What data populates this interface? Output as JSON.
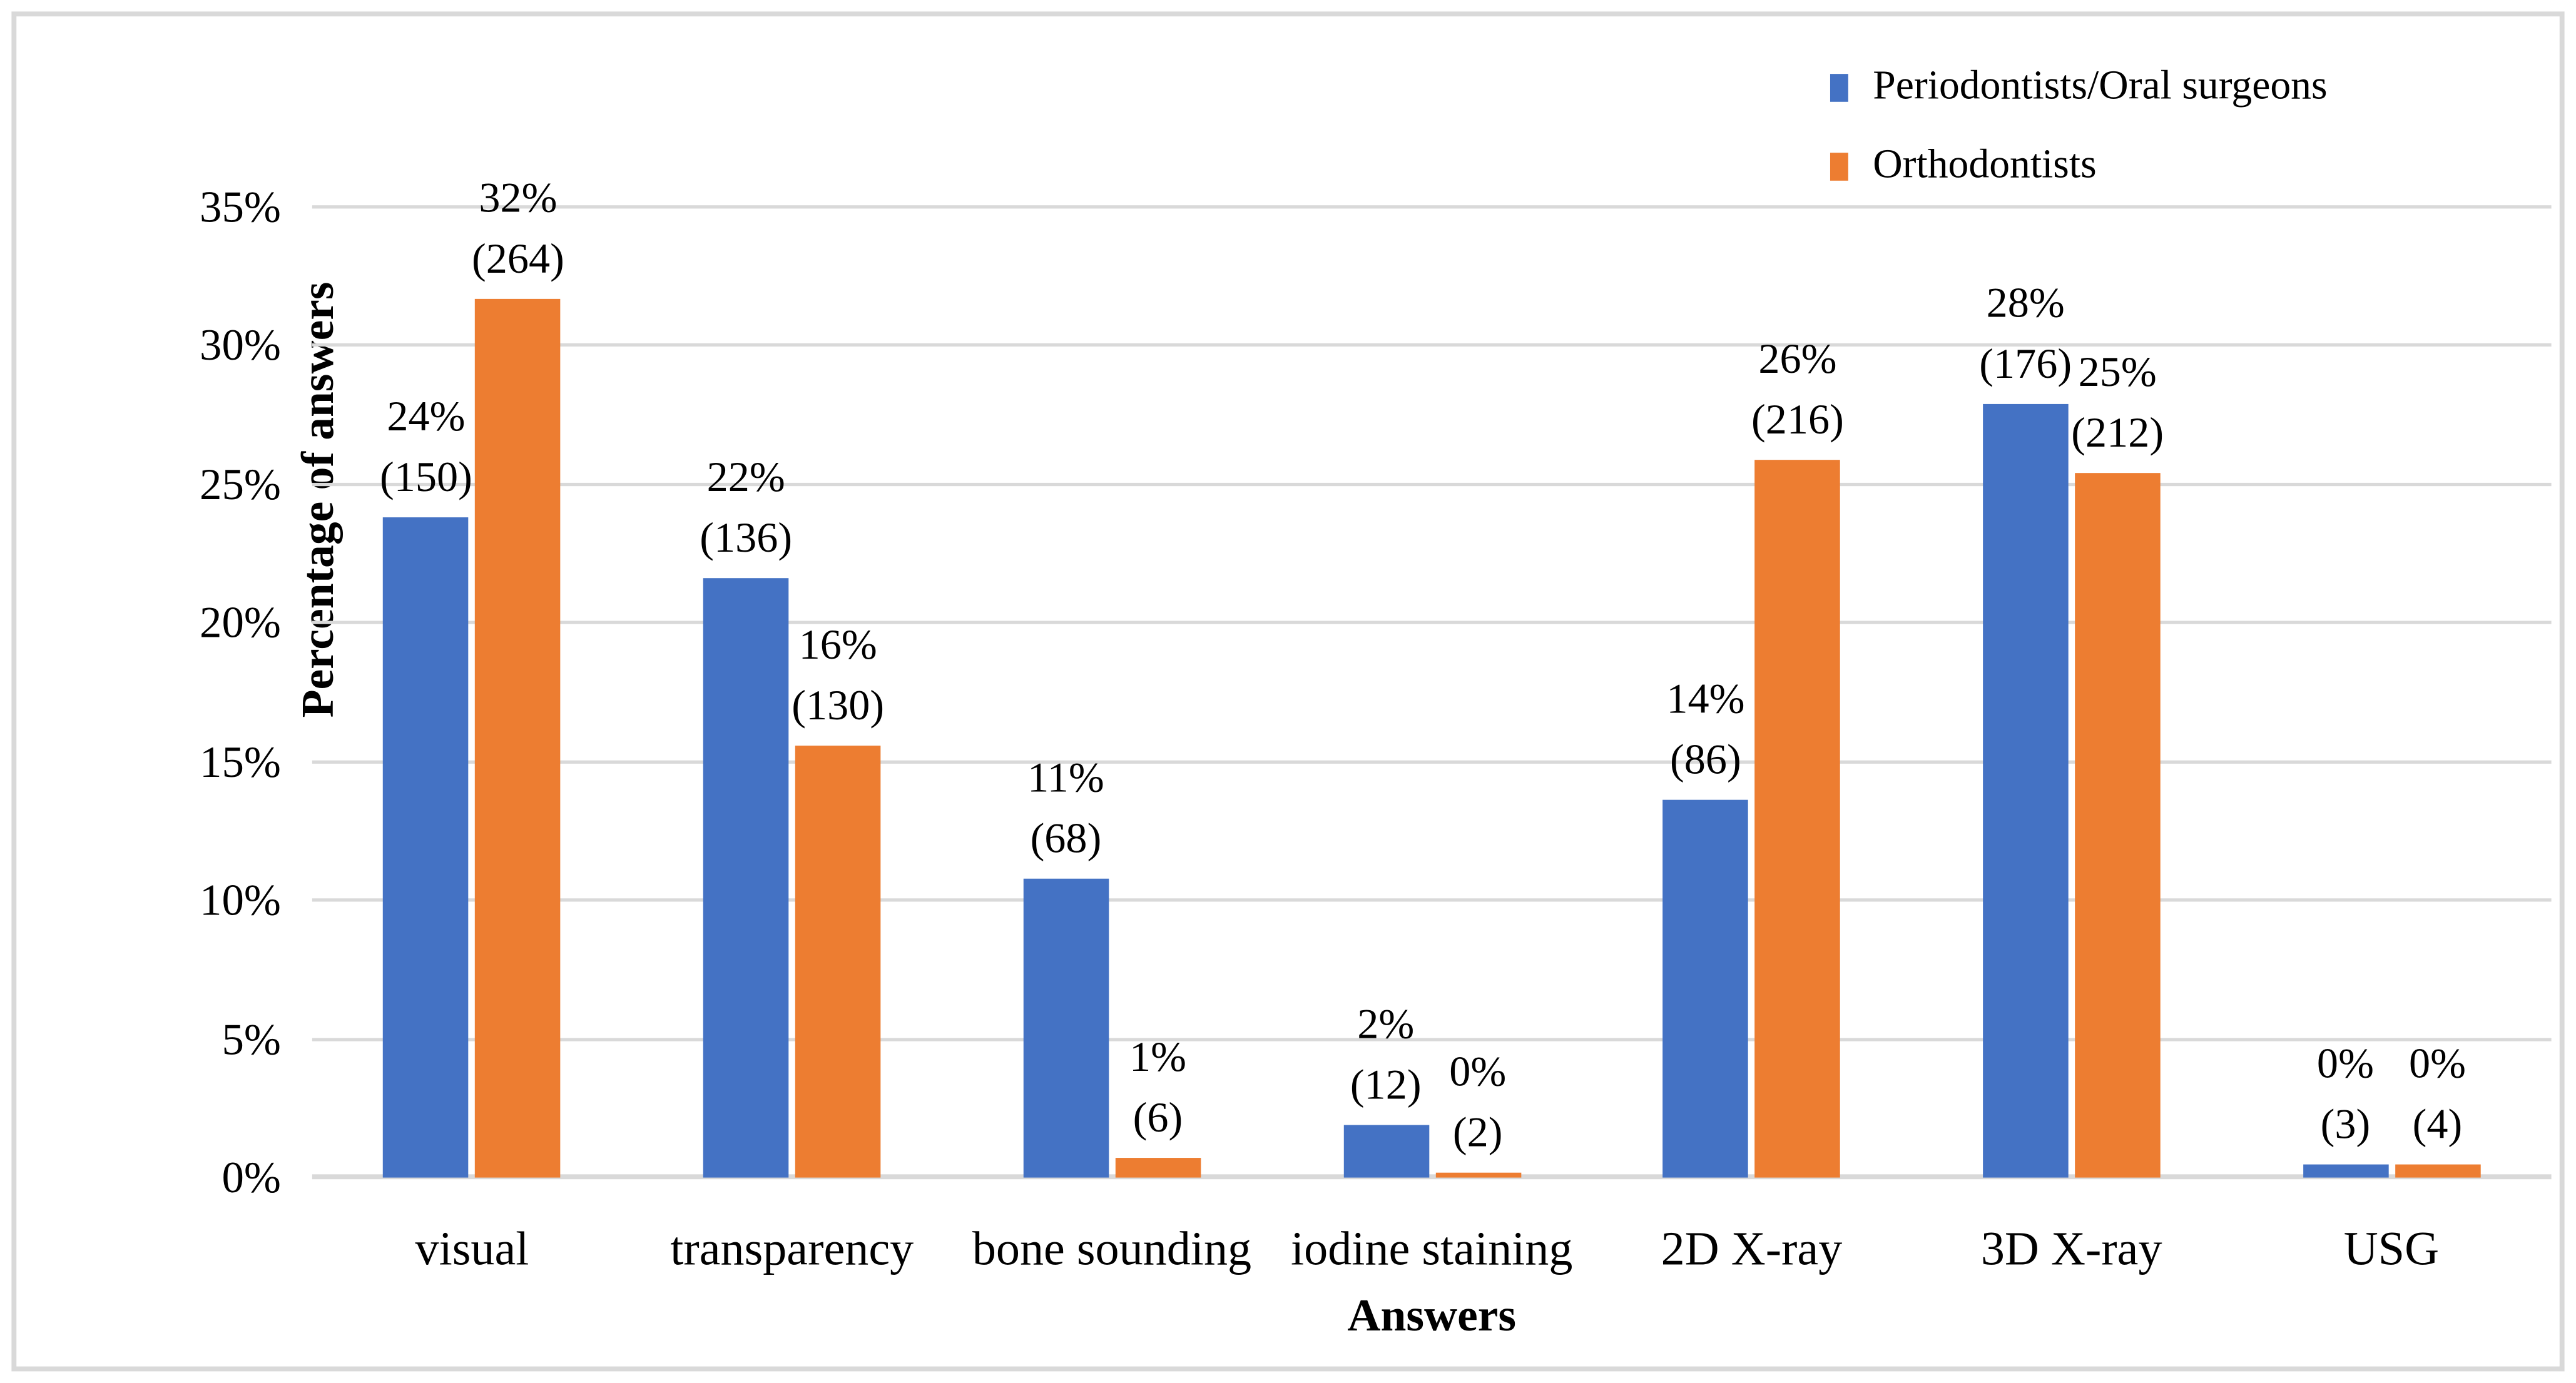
{
  "figure": {
    "background": "#FFFFFF",
    "border_color": "#D9D9D9"
  },
  "chart_data": {
    "type": "bar",
    "title": "",
    "xlabel": "Answers",
    "ylabel": "Percentage of answers",
    "categories": [
      "visual",
      "transparency",
      "bone sounding",
      "iodine staining",
      "2D X-ray",
      "3D X-ray",
      "USG"
    ],
    "y_ticks_top_to_bottom": [
      "35%",
      "30%",
      "25%",
      "20%",
      "15%",
      "10%",
      "5%",
      "0%"
    ],
    "ylim": [
      0,
      35
    ],
    "grid": true,
    "gridline_color": "#D9D9D9",
    "axis_line_color": "#D9D9D9",
    "text_color": "#000000",
    "legend_position": "top-right",
    "series": [
      {
        "name": "Periodontists/Oral surgeons",
        "color": "#4472C4",
        "values": [
          23.8,
          21.6,
          10.8,
          1.9,
          13.6,
          27.9,
          0.5
        ],
        "counts": [
          150,
          136,
          68,
          12,
          86,
          176,
          3
        ],
        "labels": [
          [
            "24%",
            "(150)"
          ],
          [
            "22%",
            "(136)"
          ],
          [
            "11%",
            "(68)"
          ],
          [
            "2%",
            "(12)"
          ],
          [
            "14%",
            "(86)"
          ],
          [
            "28%",
            "(176)"
          ],
          [
            "0%",
            "(3)"
          ]
        ]
      },
      {
        "name": "Orthodontists",
        "color": "#ED7D31",
        "values": [
          31.7,
          15.6,
          0.7,
          0.2,
          25.9,
          25.4,
          0.5
        ],
        "counts": [
          264,
          130,
          6,
          2,
          216,
          212,
          4
        ],
        "labels": [
          [
            "32%",
            "(264)"
          ],
          [
            "16%",
            "(130)"
          ],
          [
            "1%",
            "(6)"
          ],
          [
            "0%",
            "(2)"
          ],
          [
            "26%",
            "(216)"
          ],
          [
            "25%",
            "(212)"
          ],
          [
            "0%",
            "(4)"
          ]
        ]
      }
    ]
  }
}
